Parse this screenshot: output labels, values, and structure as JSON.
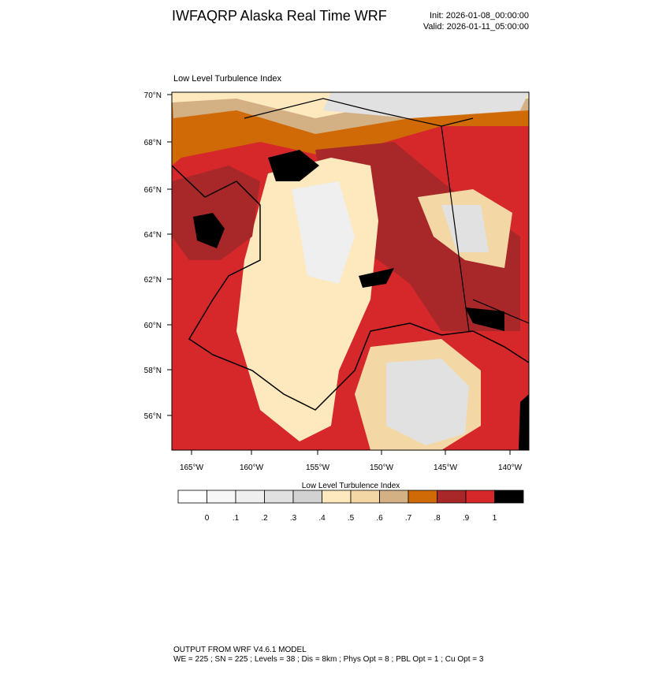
{
  "header": {
    "title": "IWFAQRP Alaska Real Time WRF",
    "init": "Init: 2026-01-08_00:00:00",
    "valid": "Valid: 2026-01-11_05:00:00"
  },
  "map": {
    "title": "Low Level Turbulence Index",
    "lat_labels": [
      "70°N",
      "68°N",
      "66°N",
      "64°N",
      "62°N",
      "60°N",
      "58°N",
      "56°N"
    ],
    "lon_labels": [
      "165°W",
      "160°W",
      "155°W",
      "150°W",
      "145°W",
      "140°W"
    ]
  },
  "colorbar": {
    "title": "Low Level Turbulence Index",
    "colors": [
      "#ffffff",
      "#f7f7f7",
      "#efefef",
      "#e1e1e1",
      "#d2d2d2",
      "#fde9bd",
      "#f3d8a6",
      "#d4b185",
      "#cf6a06",
      "#a8282a",
      "#d6282a",
      "#000000"
    ],
    "labels": [
      "0",
      ".1",
      ".2",
      ".3",
      ".4",
      ".5",
      ".6",
      ".7",
      ".8",
      ".9",
      "1"
    ]
  },
  "footer": {
    "line1": "OUTPUT FROM WRF V4.6.1 MODEL",
    "line2": "WE = 225 ; SN = 225 ; Levels = 38 ; Dis = 8km ; Phys Opt = 8 ; PBL Opt = 1 ; Cu Opt = 3"
  }
}
